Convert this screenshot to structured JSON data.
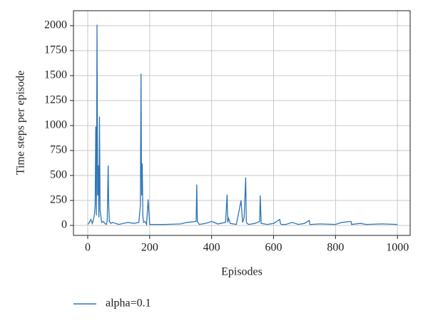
{
  "chart_data": {
    "type": "line",
    "x_label": "Episodes",
    "y_label": "Time steps per episode",
    "x": [
      0,
      5,
      10,
      15,
      20,
      22,
      24,
      26,
      28,
      30,
      32,
      34,
      36,
      38,
      40,
      45,
      50,
      55,
      60,
      63,
      66,
      68,
      70,
      75,
      80,
      100,
      130,
      150,
      165,
      170,
      172,
      174,
      176,
      178,
      180,
      185,
      190,
      195,
      200,
      250,
      300,
      320,
      350,
      352,
      354,
      360,
      380,
      400,
      420,
      445,
      450,
      452,
      455,
      460,
      480,
      495,
      500,
      505,
      510,
      512,
      514,
      520,
      540,
      555,
      557,
      560,
      580,
      600,
      620,
      622,
      625,
      640,
      660,
      680,
      700,
      715,
      717,
      720,
      750,
      800,
      820,
      850,
      852,
      880,
      900,
      950,
      1000
    ],
    "series": [
      {
        "name": "alpha=0.1",
        "color": "#2e75b6",
        "values": [
          10,
          30,
          60,
          20,
          80,
          120,
          200,
          990,
          100,
          2010,
          300,
          600,
          80,
          1090,
          150,
          30,
          40,
          20,
          10,
          50,
          600,
          180,
          40,
          20,
          30,
          10,
          30,
          20,
          30,
          200,
          1520,
          300,
          620,
          100,
          30,
          40,
          10,
          260,
          10,
          10,
          15,
          30,
          40,
          410,
          40,
          10,
          20,
          40,
          15,
          30,
          310,
          30,
          70,
          20,
          10,
          250,
          30,
          80,
          480,
          40,
          20,
          10,
          20,
          40,
          300,
          20,
          10,
          20,
          60,
          20,
          10,
          10,
          30,
          10,
          20,
          50,
          10,
          10,
          15,
          10,
          30,
          40,
          10,
          20,
          10,
          15,
          10
        ]
      }
    ],
    "xlim": [
      -46,
      1041
    ],
    "ylim": [
      -100,
      2150
    ],
    "xticks": [
      0,
      200,
      400,
      600,
      800,
      1000
    ],
    "yticks": [
      0,
      250,
      500,
      750,
      1000,
      1250,
      1500,
      1750,
      2000
    ],
    "grid": true
  }
}
